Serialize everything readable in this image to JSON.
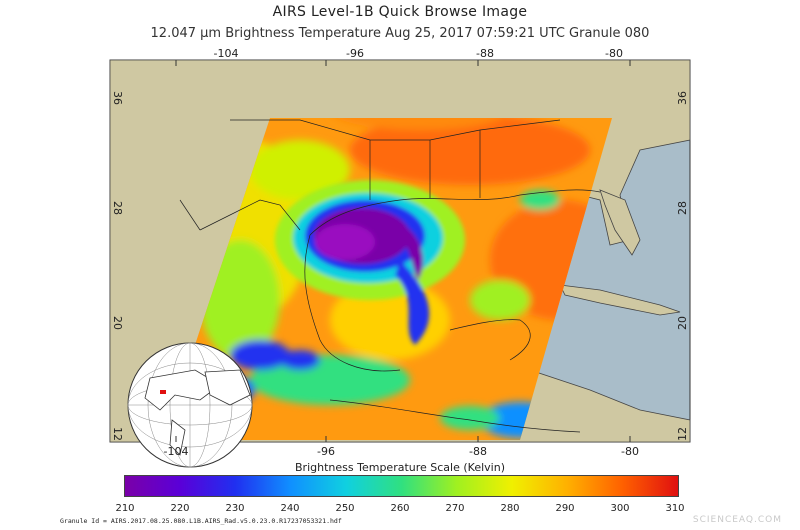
{
  "header": {
    "title": "AIRS Level-1B Quick Browse Image",
    "subtitle": "12.047 µm Brightness Temperature    Aug 25, 2017 07:59:21 UTC   Granule 080"
  },
  "axes": {
    "top_lon": [
      "-104",
      "-96",
      "-88",
      "-80"
    ],
    "bottom_lon": [
      "-104",
      "-96",
      "-88",
      "-80"
    ],
    "left_lat": [
      "36",
      "28",
      "20",
      "12"
    ],
    "right_lat": [
      "36",
      "28",
      "20",
      "12"
    ]
  },
  "scale": {
    "title": "Brightness Temperature Scale (Kelvin)",
    "labels": [
      "210",
      "220",
      "230",
      "240",
      "250",
      "260",
      "270",
      "280",
      "290",
      "300",
      "310"
    ],
    "colors": [
      "#7a00a8",
      "#5a00d8",
      "#2030f0",
      "#1090ff",
      "#10d0e0",
      "#30e080",
      "#a0f020",
      "#f0f000",
      "#ffb000",
      "#ff6000",
      "#e01010"
    ]
  },
  "footer": {
    "granule_id": "Granule Id = AIRS.2017.08.25.080.L1B.AIRS_Rad.v5.0.23.0.R17237053321.hdf",
    "watermark": "SCIENCEAQ.COM"
  },
  "colors": {
    "land": "#cfc8a2",
    "ocean": "#a9bdc9",
    "hurricane_core": "#9a10c0"
  }
}
